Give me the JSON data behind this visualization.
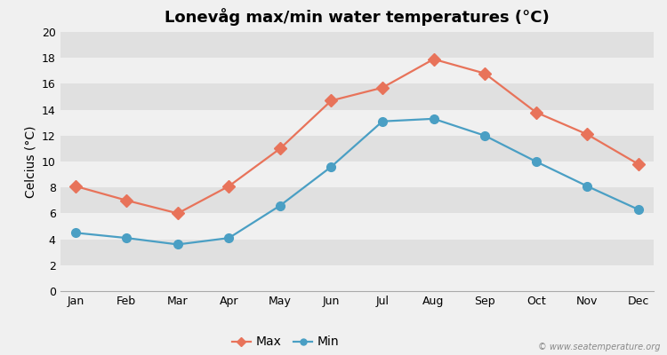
{
  "title": "Lonevåg max/min water temperatures (°C)",
  "ylabel": "Celcius (°C)",
  "months": [
    "Jan",
    "Feb",
    "Mar",
    "Apr",
    "May",
    "Jun",
    "Jul",
    "Aug",
    "Sep",
    "Oct",
    "Nov",
    "Dec"
  ],
  "max_values": [
    8.1,
    7.0,
    6.0,
    8.1,
    11.0,
    14.7,
    15.7,
    17.9,
    16.8,
    13.8,
    12.1,
    9.8
  ],
  "min_values": [
    4.5,
    4.1,
    3.6,
    4.1,
    6.6,
    9.6,
    13.1,
    13.3,
    12.0,
    10.0,
    8.1,
    6.3
  ],
  "max_color": "#e8735a",
  "min_color": "#4a9fc4",
  "bg_color": "#f0f0f0",
  "plot_bg_color_light": "#f0f0f0",
  "plot_bg_color_dark": "#e0e0e0",
  "grid_color": "#ffffff",
  "ylim": [
    0,
    20
  ],
  "yticks": [
    0,
    2,
    4,
    6,
    8,
    10,
    12,
    14,
    16,
    18,
    20
  ],
  "watermark": "© www.seatemperature.org",
  "legend_labels": [
    "Max",
    "Min"
  ],
  "title_fontsize": 13,
  "label_fontsize": 10,
  "tick_fontsize": 9,
  "marker_size": 7,
  "line_width": 1.6
}
